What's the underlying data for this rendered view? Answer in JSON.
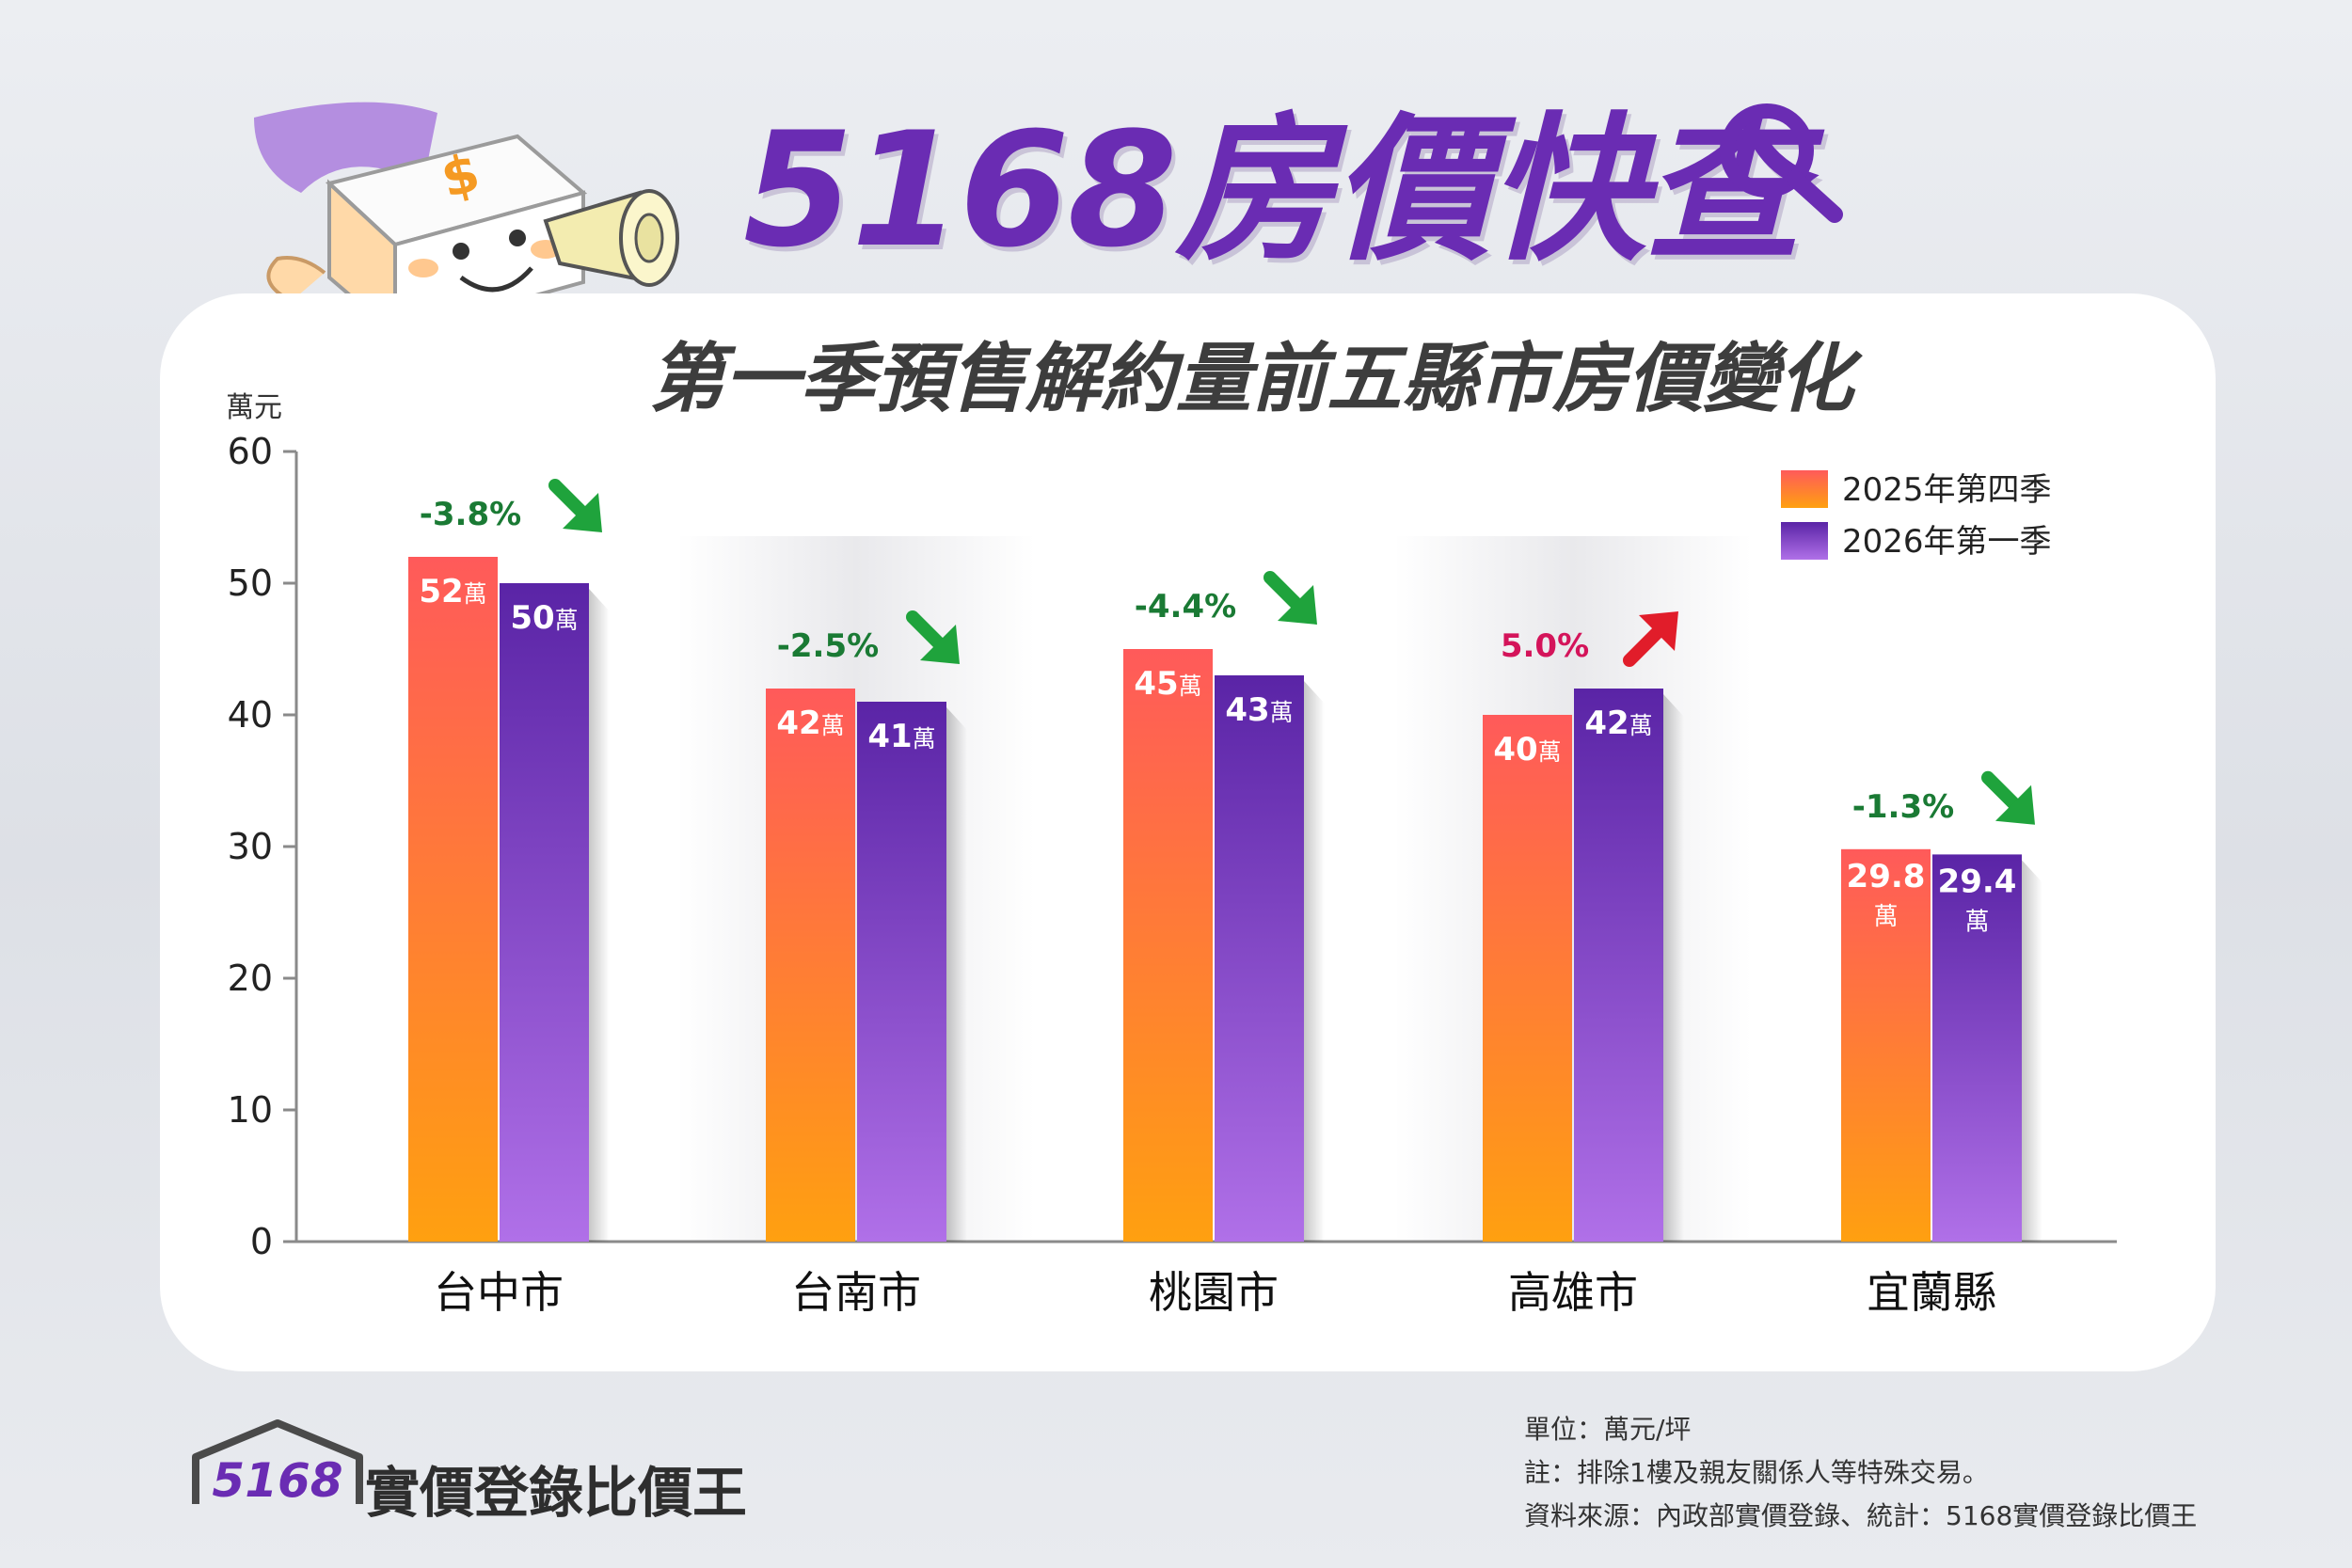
{
  "header": {
    "brand_title": "5168房價快查",
    "subtitle": "第一季預售解約量前五縣市房價變化"
  },
  "colors": {
    "series_1_top": "#ff5a5a",
    "series_1_bottom": "#ffa010",
    "series_2_top": "#5a24a6",
    "series_2_bottom": "#b070e8",
    "down_arrow": "#1fa33c",
    "up_arrow": "#e11d2a",
    "down_label": "#1a7a34",
    "up_label": "#d4145a",
    "brand_purple": "#6a2cb3"
  },
  "chart_data": {
    "type": "bar",
    "unit_label": "萬元",
    "ylim": [
      0,
      60
    ],
    "yticks": [
      "0",
      "10",
      "20",
      "30",
      "40",
      "50",
      "60"
    ],
    "categories": [
      "台中市",
      "台南市",
      "桃園市",
      "高雄市",
      "宜蘭縣"
    ],
    "series": [
      {
        "name": "2025年第四季",
        "values": [
          52,
          42,
          45,
          40,
          29.8
        ],
        "labels": [
          "52",
          "42",
          "45",
          "40",
          "29.8"
        ]
      },
      {
        "name": "2026年第一季",
        "values": [
          50,
          41,
          43,
          42,
          29.4
        ],
        "labels": [
          "50",
          "41",
          "43",
          "42",
          "29.4"
        ]
      }
    ],
    "value_suffix": "萬",
    "changes": [
      {
        "label": "-3.8%",
        "direction": "down"
      },
      {
        "label": "-2.5%",
        "direction": "down"
      },
      {
        "label": "-4.4%",
        "direction": "down"
      },
      {
        "label": "5.0%",
        "direction": "up"
      },
      {
        "label": "-1.3%",
        "direction": "down"
      }
    ],
    "legend_position": "top-right",
    "grid": false
  },
  "mascot": {
    "icon": "tofu-megaphone-mascot-icon",
    "glyph": "$"
  },
  "footer": {
    "logo_number": "5168",
    "logo_text": "實價登錄比價王",
    "logo_icon": "house-roof-icon",
    "notes": [
      "單位：萬元/坪",
      "註：排除1樓及親友關係人等特殊交易。",
      "資料來源：內政部實價登錄、統計：5168實價登錄比價王"
    ]
  }
}
